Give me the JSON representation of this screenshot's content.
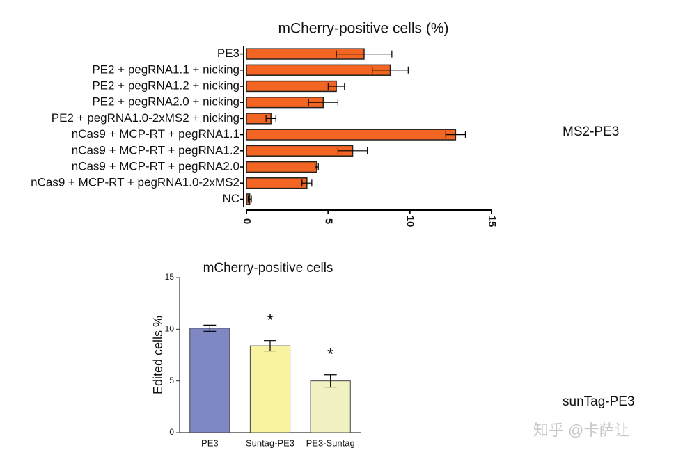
{
  "chart_data": [
    {
      "type": "barh",
      "title": "mCherry-positive cells (%)",
      "categories": [
        "PE3",
        "PE2 + pegRNA1.1 + nicking",
        "PE2 + pegRNA1.2 + nicking",
        "PE2 + pegRNA2.0 + nicking",
        "PE2 + pegRNA1.0-2xMS2 + nicking",
        "nCas9 + MCP-RT + pegRNA1.1",
        "nCas9 + MCP-RT + pegRNA1.2",
        "nCas9 + MCP-RT + pegRNA2.0",
        "nCas9 + MCP-RT + pegRNA1.0-2xMS2",
        "NC"
      ],
      "values": [
        7.2,
        8.8,
        5.5,
        4.7,
        1.5,
        12.8,
        6.5,
        4.3,
        3.7,
        0.2
      ],
      "errors": [
        1.7,
        1.1,
        0.5,
        0.9,
        0.3,
        0.6,
        0.9,
        0.1,
        0.3,
        0.1
      ],
      "color": "#f26522",
      "xlim": [
        0,
        15
      ],
      "xticks": [
        0,
        5,
        10,
        15
      ]
    },
    {
      "type": "bar",
      "title": "mCherry-positive cells",
      "ylabel": "Edited cells %",
      "categories": [
        "PE3",
        "Suntag-PE3",
        "PE3-Suntag"
      ],
      "values": [
        10.1,
        8.4,
        5.0
      ],
      "errors": [
        0.3,
        0.5,
        0.6
      ],
      "colors": [
        "#8088c4",
        "#f8f3a0",
        "#f1f1c2"
      ],
      "annotations": [
        null,
        "*",
        "*"
      ],
      "ylim": [
        0,
        15
      ],
      "yticks": [
        0,
        5,
        10,
        15
      ]
    }
  ],
  "labels": [
    "MS2-PE3",
    "sunTag-PE3"
  ],
  "watermark": "知乎 @卡萨让"
}
